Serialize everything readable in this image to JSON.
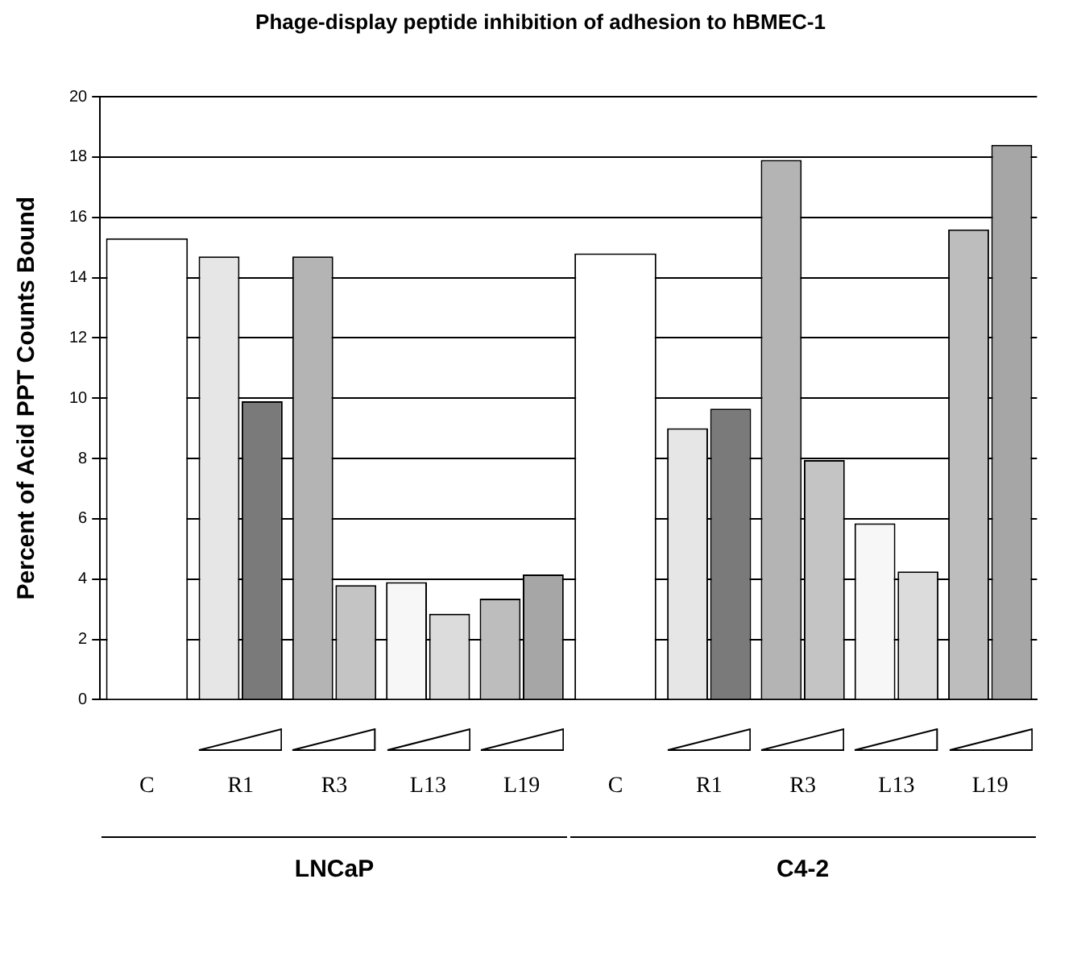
{
  "chart_data": {
    "type": "bar",
    "title": "Phage-display peptide inhibition of adhesion to hBMEC-1",
    "ylabel": "Percent of Acid PPT Counts Bound",
    "categories": [
      "C",
      "R1",
      "R3",
      "L13",
      "L19",
      "C",
      "R1",
      "R3",
      "L13",
      "L19"
    ],
    "series": [
      {
        "colors": [
          "#ffffff",
          "#e6e6e6",
          "#b4b4b4",
          "#f7f7f7",
          "#bdbdbd",
          "#ffffff",
          "#e6e6e6",
          "#b4b4b4",
          "#f7f7f7",
          "#bdbdbd"
        ],
        "values": [
          15.3,
          14.7,
          14.7,
          3.9,
          3.35,
          14.8,
          9.0,
          17.9,
          5.85,
          15.6
        ]
      },
      {
        "colors": [
          null,
          "#7a7a7a",
          "#c4c4c4",
          "#dcdcdc",
          "#a6a6a6",
          null,
          "#7a7a7a",
          "#c4c4c4",
          "#dcdcdc",
          "#a6a6a6"
        ],
        "values": [
          null,
          9.9,
          3.8,
          2.85,
          4.15,
          null,
          9.65,
          7.95,
          4.25,
          18.4
        ]
      }
    ],
    "ylim": [
      0,
      20
    ],
    "yticks": [
      0,
      2,
      4,
      6,
      8,
      10,
      12,
      14,
      16,
      18,
      20
    ],
    "grid": "y",
    "legend": false,
    "annotations": [
      "LNCaP",
      "C4-2"
    ]
  }
}
